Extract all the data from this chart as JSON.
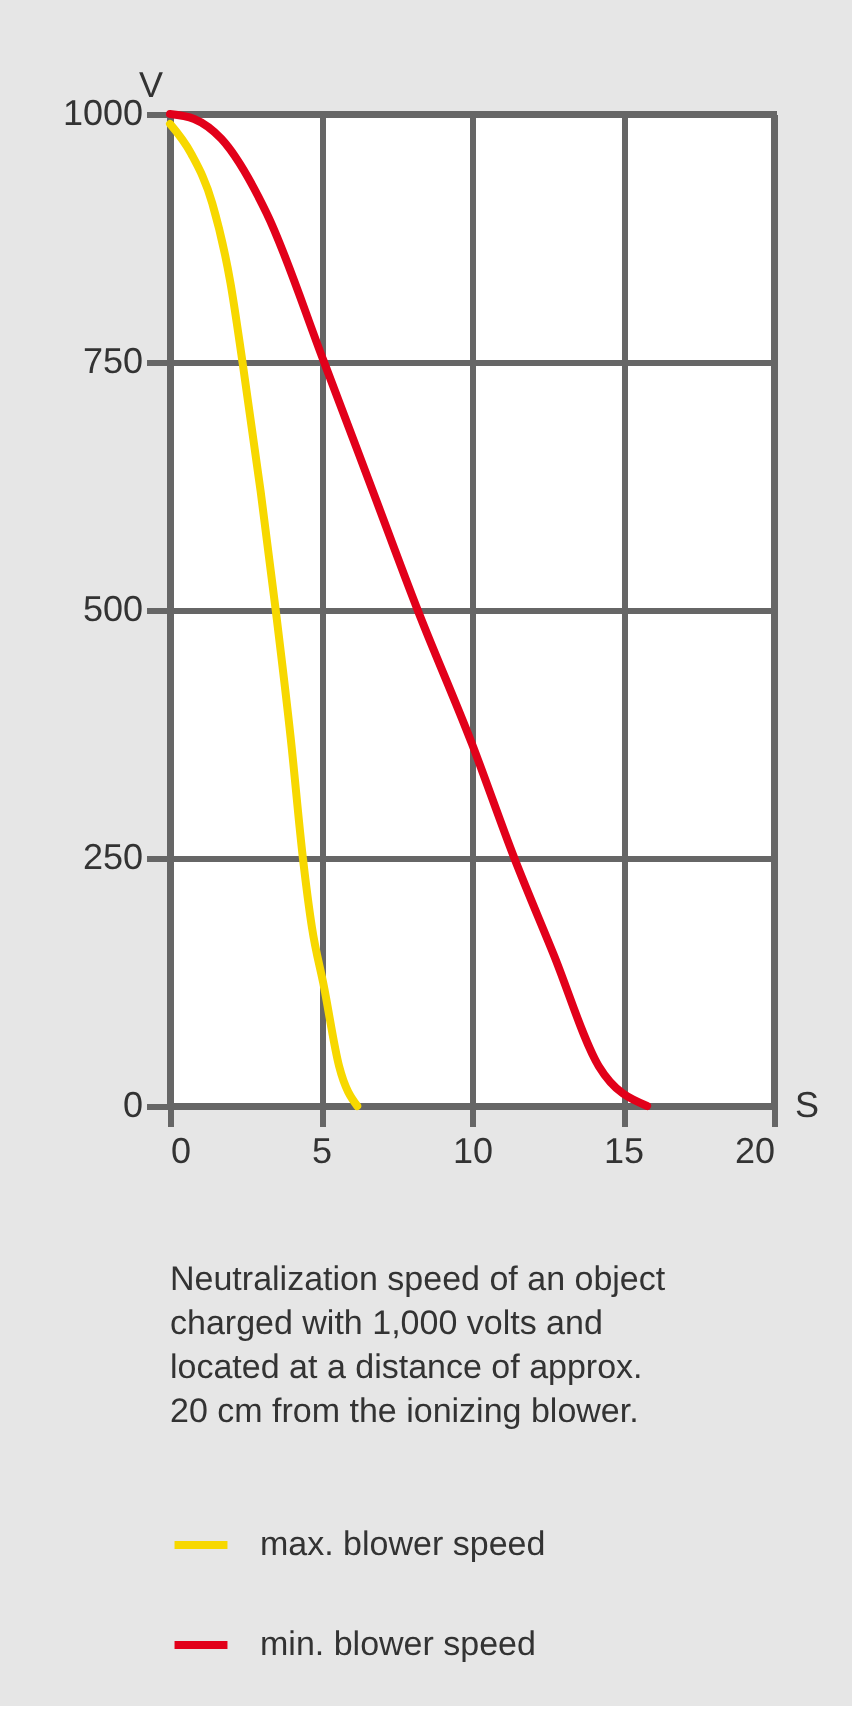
{
  "chart_data": {
    "type": "line",
    "xlabel": "S",
    "ylabel": "V",
    "xlim": [
      0,
      20
    ],
    "ylim": [
      0,
      1000
    ],
    "xticks": [
      0,
      5,
      10,
      15,
      20
    ],
    "yticks": [
      0,
      250,
      500,
      750,
      1000
    ],
    "grid": true,
    "legend": "bottom",
    "line_style": "solid",
    "marker": "none",
    "annotations": [
      "Neutralization speed of an object\ncharged with 1,000 volts and\nlocated at a distance of approx.\n20 cm from the ionizing blower."
    ],
    "series": [
      {
        "name": "max. blower speed",
        "color": "#f7d800",
        "x": [
          0,
          0.7,
          1.4,
          2.0,
          2.4,
          3.0,
          3.5,
          4.0,
          4.4,
          4.7,
          5.1,
          5.6,
          6.2
        ],
        "values": [
          990,
          960,
          910,
          830,
          750,
          620,
          500,
          370,
          250,
          180,
          120,
          40,
          0
        ]
      },
      {
        "name": "min. blower speed",
        "color": "#e2001a",
        "x": [
          0,
          0.8,
          1.7,
          3.2,
          5.1,
          6.75,
          8.2,
          10.0,
          11.4,
          12.7,
          14.2,
          15.8
        ],
        "values": [
          1000,
          995,
          975,
          900,
          750,
          617,
          500,
          365,
          250,
          153,
          40,
          0
        ]
      }
    ]
  }
}
